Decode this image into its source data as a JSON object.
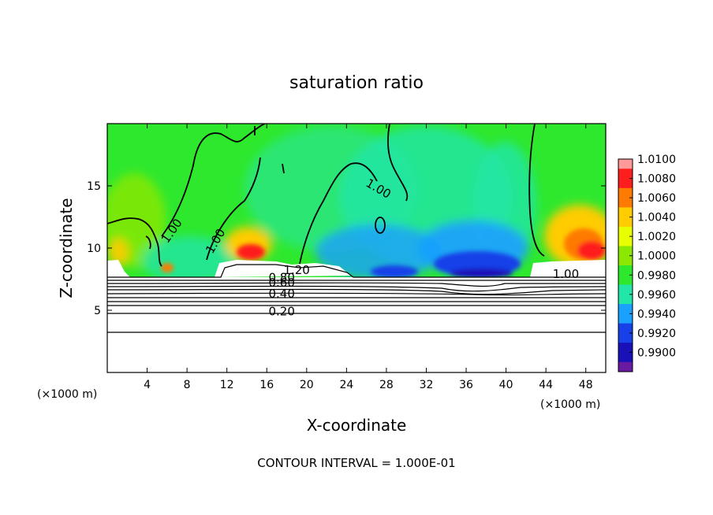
{
  "chart_data": {
    "type": "heatmap",
    "title": "saturation ratio",
    "xlabel": "X-coordinate",
    "ylabel": "Z-coordinate",
    "x_unit_label": "(×1000 m)",
    "x_unit_label_right": "(×1000 m)",
    "xlim": [
      0,
      50
    ],
    "ylim": [
      0,
      20
    ],
    "x_ticks": [
      4,
      8,
      12,
      16,
      20,
      24,
      28,
      32,
      36,
      40,
      44,
      48
    ],
    "y_ticks": [
      5,
      10,
      15
    ],
    "colorbar": {
      "levels": [
        "1.0100",
        "1.0080",
        "1.0060",
        "1.0040",
        "1.0020",
        "1.0000",
        "0.9980",
        "0.9960",
        "0.9940",
        "0.9920",
        "0.9900"
      ],
      "colors": [
        "#ff9a9a",
        "#ff1e1e",
        "#ff7a00",
        "#ffcc00",
        "#e8ff00",
        "#8ce800",
        "#2ee82e",
        "#22e6a8",
        "#1aa0ff",
        "#1840e8",
        "#1a10b8",
        "#6a1aa0"
      ]
    },
    "contour_labels": [
      {
        "text": "1.00",
        "x": 6.8,
        "z": 11.2
      },
      {
        "text": "1.00",
        "x": 11.2,
        "z": 10.4
      },
      {
        "text": "1.00",
        "x": 27,
        "z": 14.5
      },
      {
        "text": "1.00",
        "x": 46,
        "z": 7.6
      },
      {
        "text": "1.20",
        "x": 19,
        "z": 7.9
      },
      {
        "text": "0.80",
        "x": 17.5,
        "z": 7.3
      },
      {
        "text": "0.60",
        "x": 17.5,
        "z": 6.9
      },
      {
        "text": "0.40",
        "x": 17.5,
        "z": 6.0
      },
      {
        "text": "0.20",
        "x": 17.5,
        "z": 4.6
      }
    ],
    "contour_interval_text": "CONTOUR INTERVAL = 1.000E-01"
  }
}
